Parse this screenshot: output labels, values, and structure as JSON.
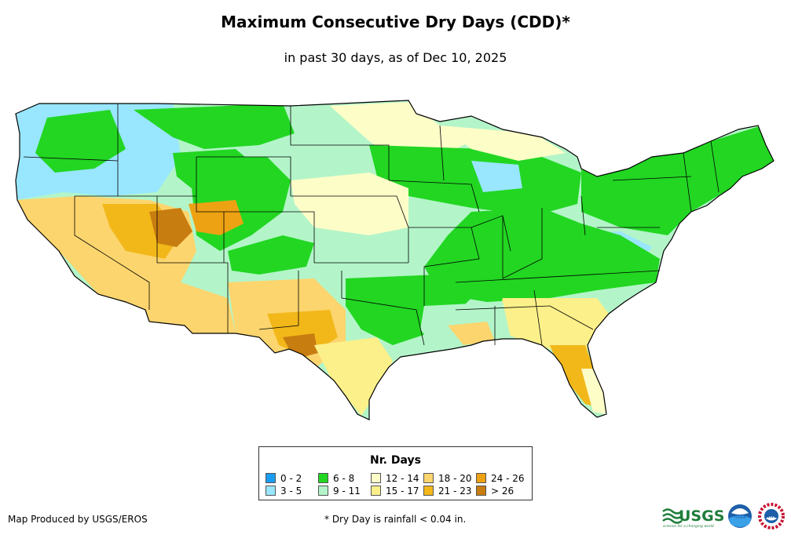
{
  "title": "Maximum Consecutive Dry Days (CDD)*",
  "subtitle": "in past 30 days, as of Dec 10, 2025",
  "legend": {
    "title": "Nr. Days",
    "items": [
      {
        "label": "0 - 2",
        "color": "#1a9cf0"
      },
      {
        "label": "3 - 5",
        "color": "#99e6ff"
      },
      {
        "label": "6 - 8",
        "color": "#22d622"
      },
      {
        "label": "9 - 11",
        "color": "#b3f5c9"
      },
      {
        "label": "12 - 14",
        "color": "#fdfdc8"
      },
      {
        "label": "15 - 17",
        "color": "#fcf08a"
      },
      {
        "label": "18 - 20",
        "color": "#fcd56e"
      },
      {
        "label": "21 - 23",
        "color": "#f2b81a"
      },
      {
        "label": "24 - 26",
        "color": "#eda214"
      },
      {
        "label": "> 26",
        "color": "#c87d10"
      }
    ]
  },
  "footer": {
    "credit": "Map Produced by USGS/EROS",
    "note": "* Dry Day is rainfall < 0.04 in."
  },
  "logos": {
    "usgs_text": "USGS",
    "usgs_tagline": "science for a changing world",
    "noaa_text": "noaa",
    "nws_text": "NWS"
  }
}
